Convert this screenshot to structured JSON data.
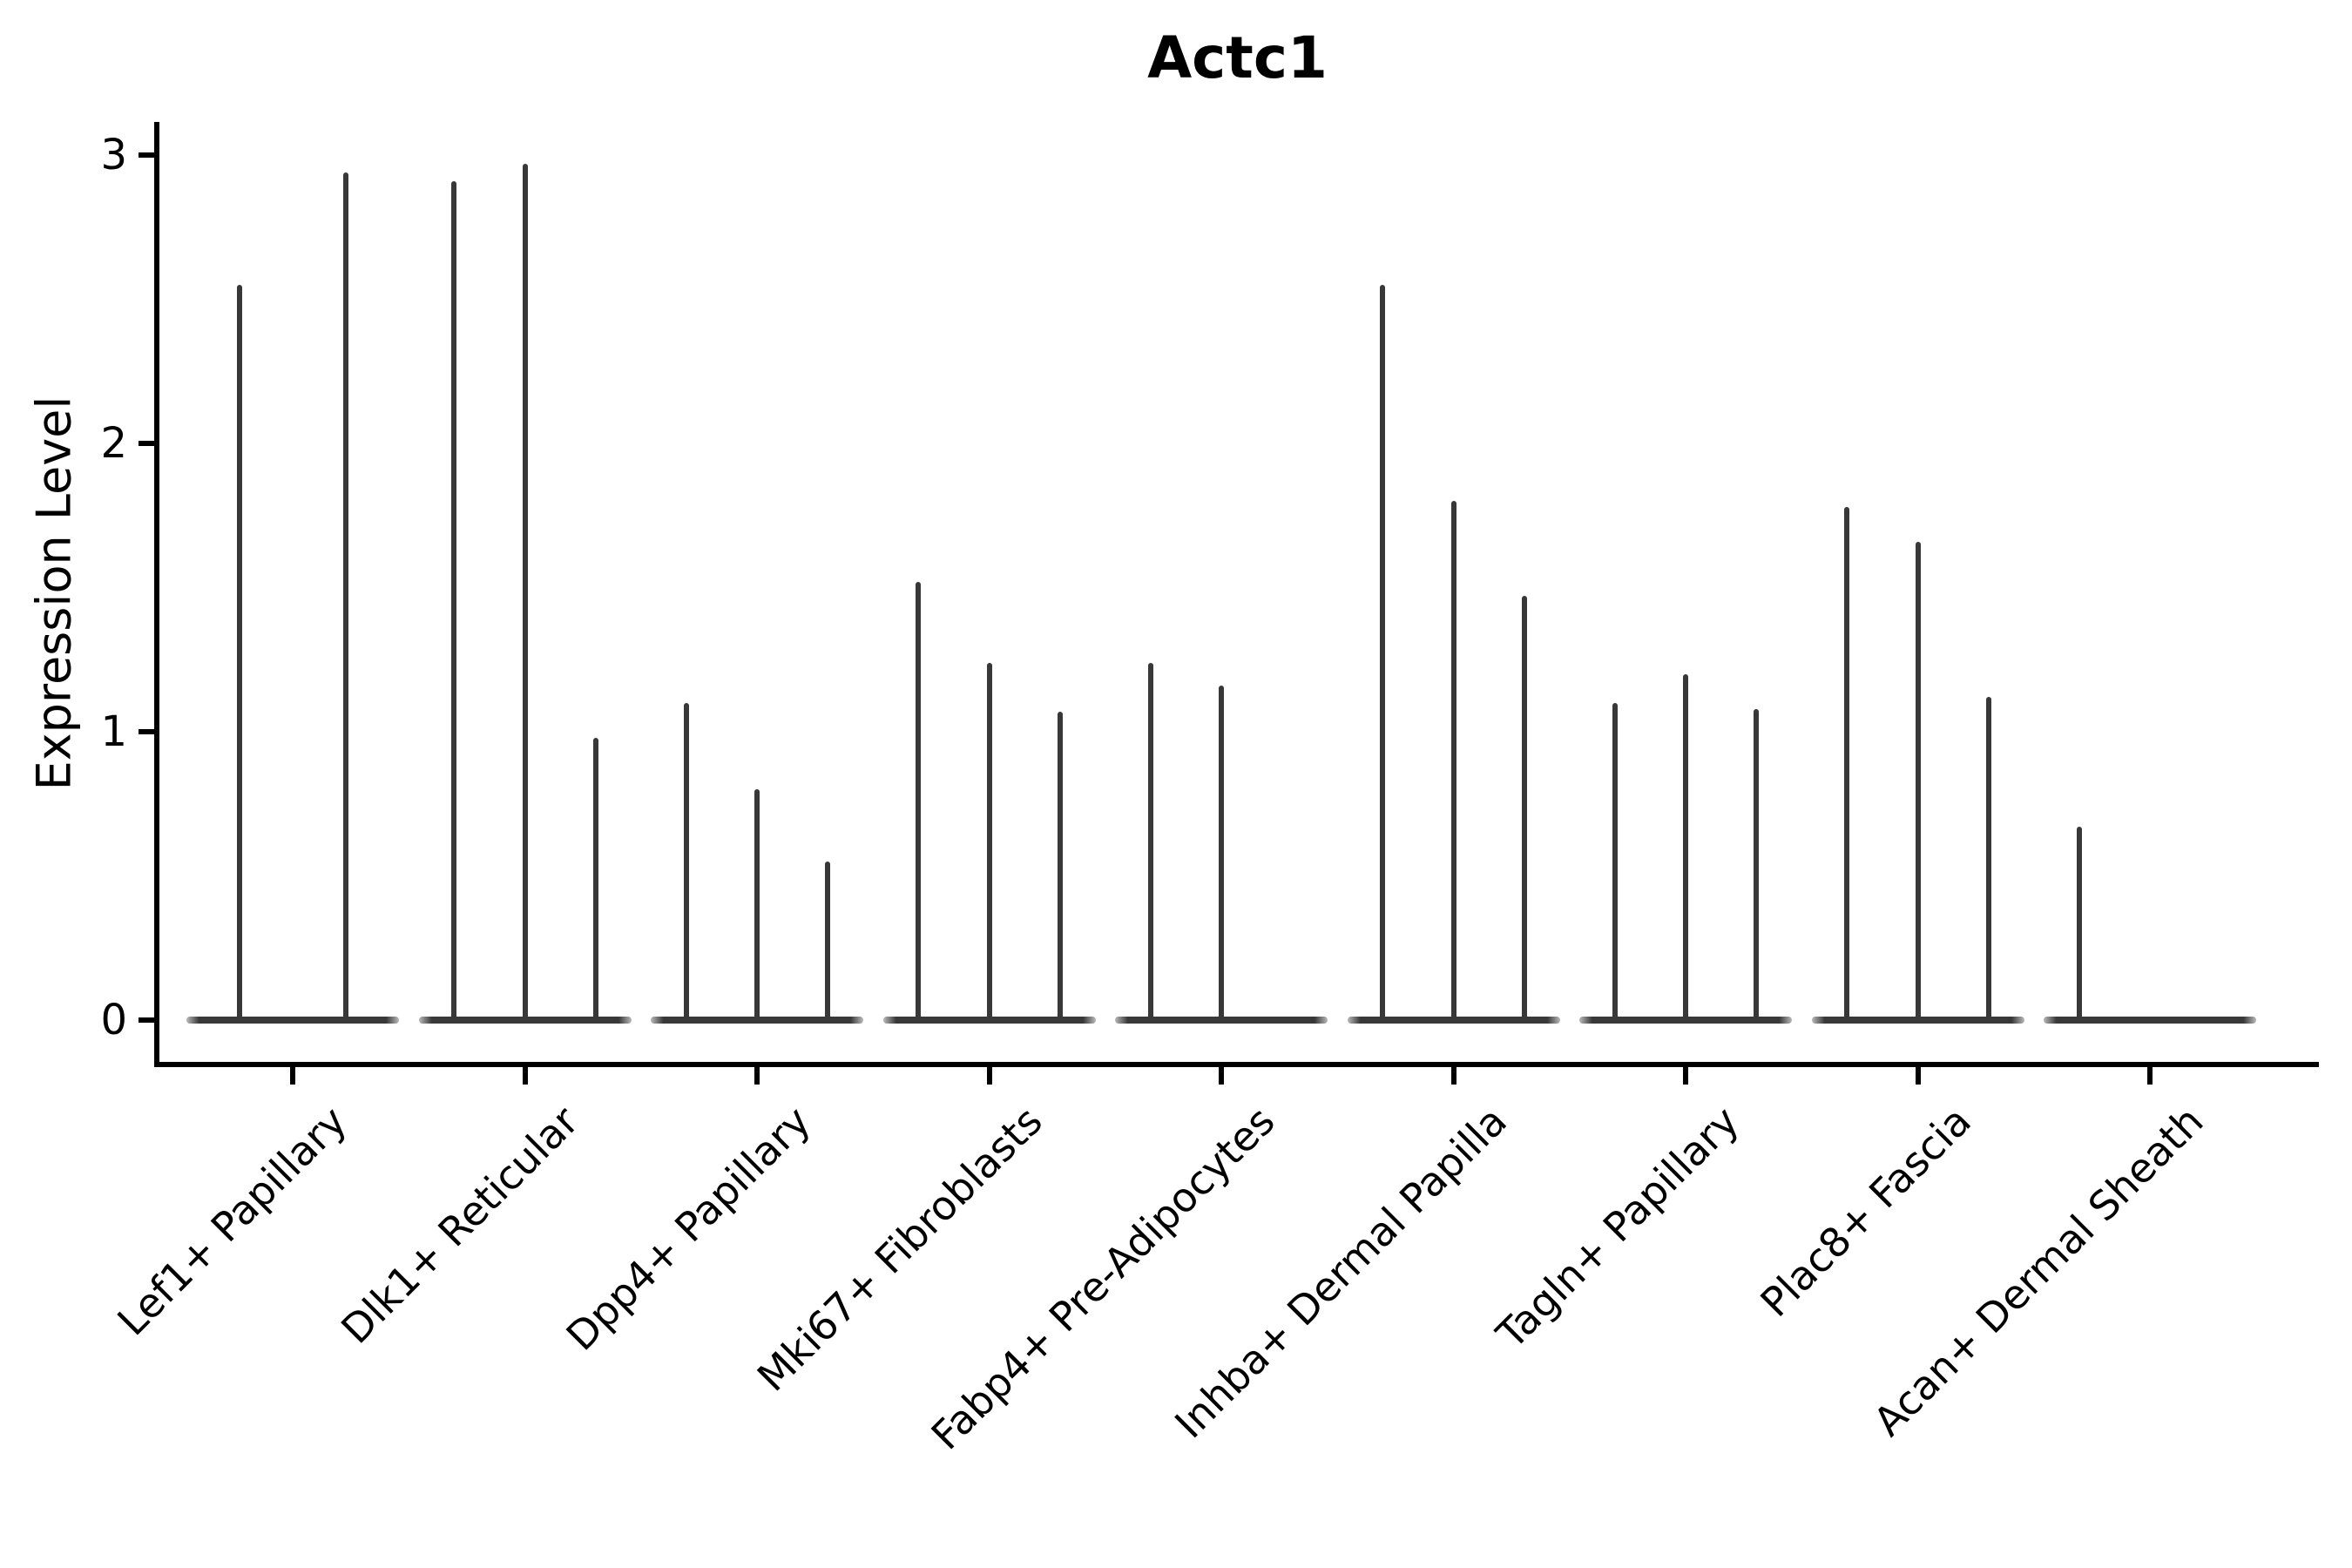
{
  "chart_data": {
    "type": "violin",
    "title": "Actc1",
    "xlabel": "",
    "ylabel": "Expression Level",
    "yticks": [
      0,
      1,
      2,
      3
    ],
    "ylim": [
      -0.15,
      3.11
    ],
    "grid": false,
    "legend": "none",
    "violin_color": "#383838",
    "axis_color": "#000000",
    "categories": [
      "Lef1+ Papillary",
      "Dlk1+ Reticular",
      "Dpp4+ Papillary",
      "Mki67+ Fibroblasts",
      "Fabp4+ Pre-Adipocytes",
      "Inhba+ Dermal Papilla",
      "Tagln+ Papillary",
      "Plac8+ Fascia",
      "Acan+ Dermal Sheath"
    ],
    "groups": [
      {
        "category": "Lef1+ Papillary",
        "sub_violins": 2,
        "baseline_value": 0,
        "max_expression": [
          2.55,
          2.94
        ]
      },
      {
        "category": "Dlk1+ Reticular",
        "sub_violins": 3,
        "baseline_value": 0,
        "max_expression": [
          2.91,
          2.97,
          0.98
        ]
      },
      {
        "category": "Dpp4+ Papillary",
        "sub_violins": 3,
        "baseline_value": 0,
        "max_expression": [
          1.1,
          0.8,
          0.55
        ]
      },
      {
        "category": "Mki67+ Fibroblasts",
        "sub_violins": 3,
        "baseline_value": 0,
        "max_expression": [
          1.52,
          1.24,
          1.07
        ]
      },
      {
        "category": "Fabp4+ Pre-Adipocytes",
        "sub_violins": 3,
        "baseline_value": 0,
        "max_expression": [
          1.24,
          1.16,
          0
        ]
      },
      {
        "category": "Inhba+ Dermal Papilla",
        "sub_violins": 3,
        "baseline_value": 0,
        "max_expression": [
          2.55,
          1.8,
          1.47
        ]
      },
      {
        "category": "Tagln+ Papillary",
        "sub_violins": 3,
        "baseline_value": 0,
        "max_expression": [
          1.1,
          1.2,
          1.08
        ]
      },
      {
        "category": "Plac8+ Fascia",
        "sub_violins": 3,
        "baseline_value": 0,
        "max_expression": [
          1.78,
          1.66,
          1.12
        ]
      },
      {
        "category": "Acan+ Dermal Sheath",
        "sub_violins": 3,
        "baseline_value": 0,
        "max_expression": [
          0.67,
          0,
          0
        ]
      }
    ]
  }
}
